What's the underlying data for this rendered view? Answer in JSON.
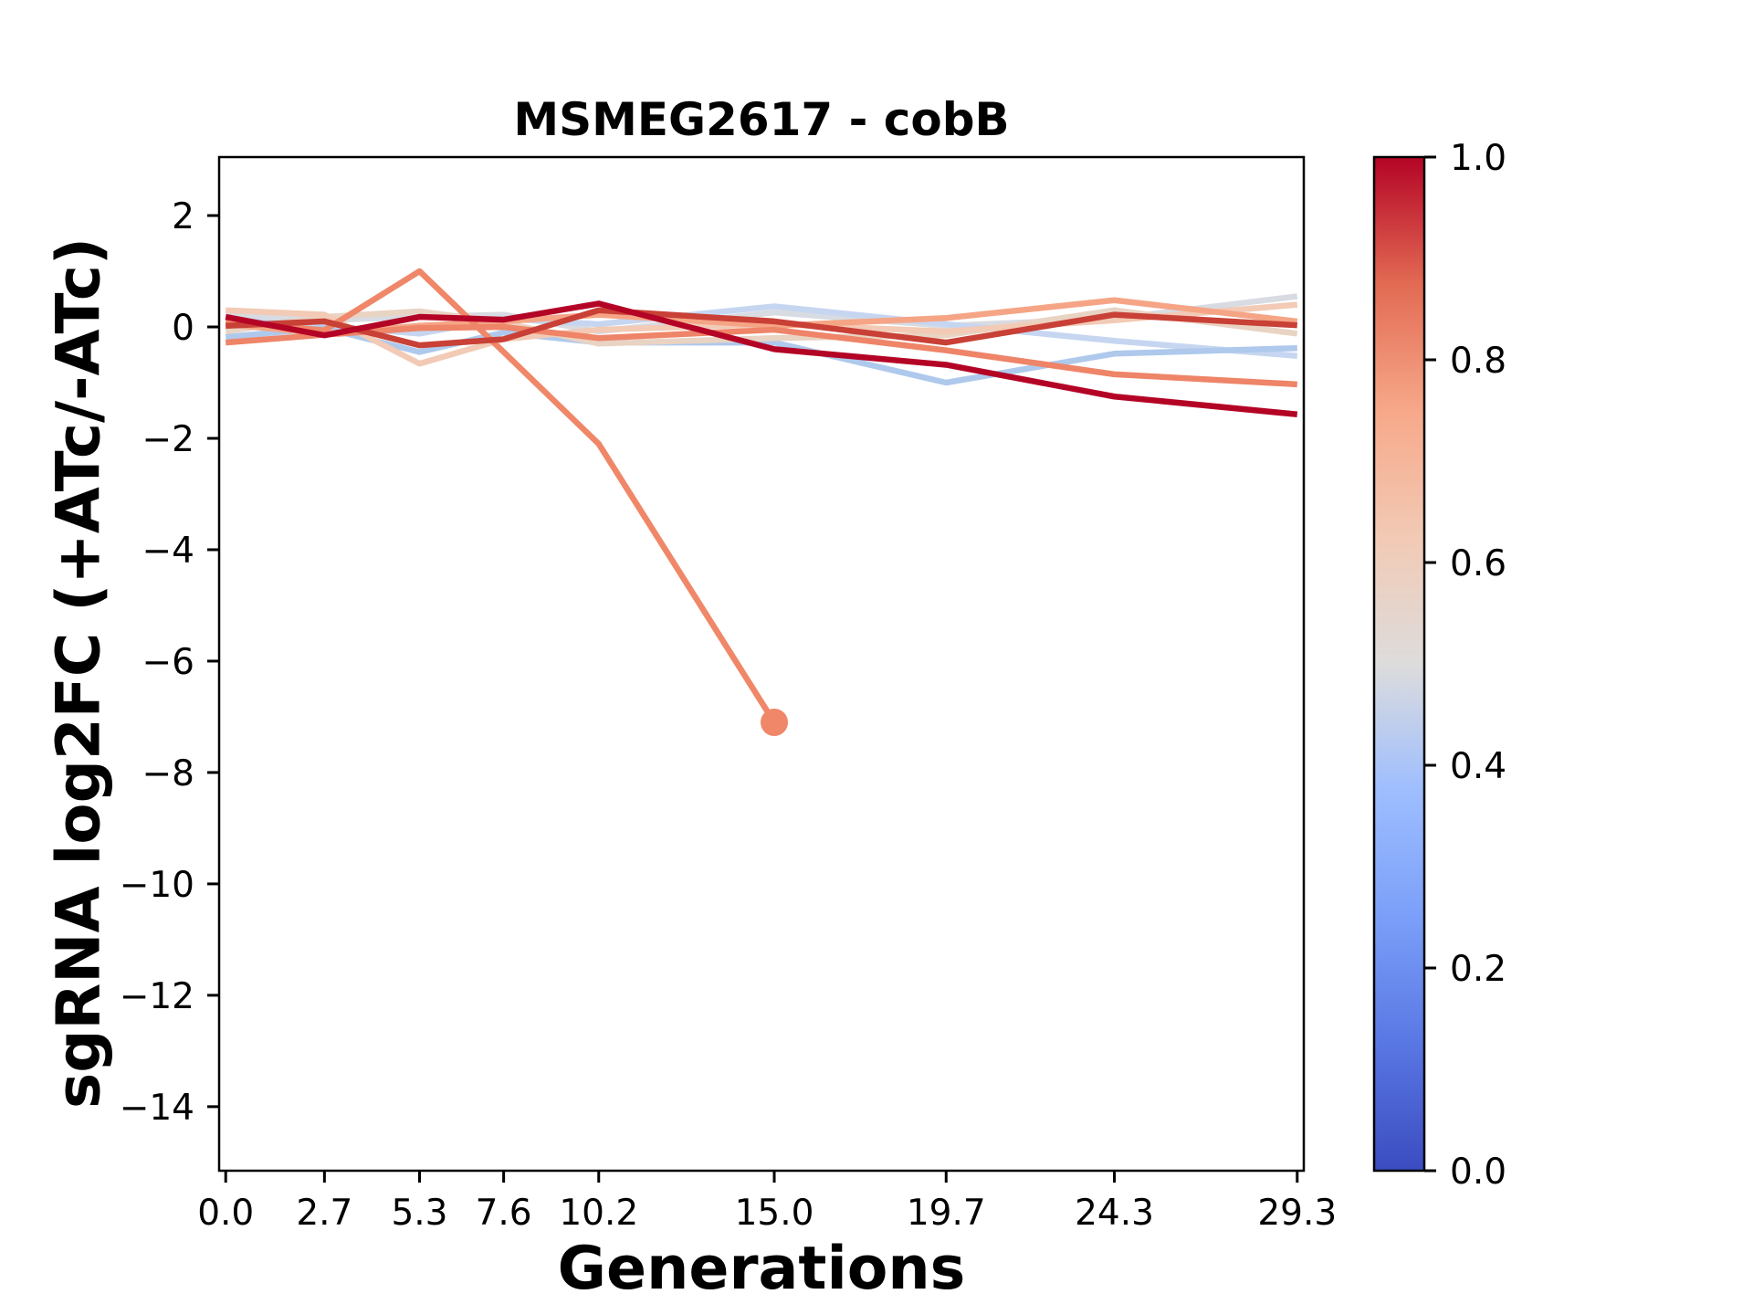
{
  "chart_data": {
    "type": "line",
    "title": "MSMEG2617 - cobB",
    "xlabel": "Generations",
    "ylabel": "sgRNA log2FC (+ATc/-ATc)",
    "xlim": [
      -0.18,
      29.48
    ],
    "ylim": [
      -15.15,
      3.05
    ],
    "grid": false,
    "background": "#ffffff",
    "axis_color": "#000000",
    "x": [
      0.0,
      2.7,
      5.3,
      7.6,
      10.2,
      15.0,
      19.7,
      24.3,
      29.3
    ],
    "x_ticks": [
      {
        "v": 0.0,
        "label": "0.0"
      },
      {
        "v": 2.7,
        "label": "2.7"
      },
      {
        "v": 5.3,
        "label": "5.3"
      },
      {
        "v": 7.6,
        "label": "7.6"
      },
      {
        "v": 10.2,
        "label": "10.2"
      },
      {
        "v": 15.0,
        "label": "15.0"
      },
      {
        "v": 19.7,
        "label": "19.7"
      },
      {
        "v": 24.3,
        "label": "24.3"
      },
      {
        "v": 29.3,
        "label": "29.3"
      }
    ],
    "y_ticks": [
      {
        "v": 2,
        "label": "2"
      },
      {
        "v": 0,
        "label": "0"
      },
      {
        "v": -2,
        "label": "−2"
      },
      {
        "v": -4,
        "label": "−4"
      },
      {
        "v": -6,
        "label": "−6"
      },
      {
        "v": -8,
        "label": "−8"
      },
      {
        "v": -10,
        "label": "−10"
      },
      {
        "v": -12,
        "label": "−12"
      },
      {
        "v": -14,
        "label": "−14"
      }
    ],
    "series": [
      {
        "cmap_value": 0.5,
        "color": "#d8dbe2",
        "values": [
          0.22,
          0.12,
          0.18,
          0.22,
          -0.08,
          0.26,
          0.02,
          0.15,
          0.55
        ]
      },
      {
        "cmap_value": 0.45,
        "color": "#c6d6f1",
        "values": [
          0.12,
          0.02,
          -0.12,
          0.15,
          0.05,
          0.37,
          0.05,
          -0.25,
          -0.52
        ]
      },
      {
        "cmap_value": 0.4,
        "color": "#aec9ec",
        "values": [
          -0.18,
          -0.02,
          -0.45,
          -0.1,
          -0.28,
          -0.28,
          -1.0,
          -0.48,
          -0.38
        ]
      },
      {
        "cmap_value": 0.57,
        "color": "#e9d3c3",
        "values": [
          -0.08,
          0.18,
          0.28,
          0.08,
          -0.3,
          -0.2,
          -0.15,
          0.3,
          -0.12
        ]
      },
      {
        "cmap_value": 0.62,
        "color": "#f2cab5",
        "values": [
          0.3,
          0.22,
          -0.66,
          -0.22,
          -0.05,
          0.05,
          -0.08,
          0.12,
          0.4
        ]
      },
      {
        "cmap_value": 0.72,
        "color": "#f5a585",
        "values": [
          0.05,
          -0.12,
          0.02,
          0.1,
          0.22,
          0.02,
          0.16,
          0.48,
          0.1
        ]
      },
      {
        "cmap_value": 0.78,
        "color": "#ef8768",
        "values": [
          0.1,
          -0.06,
          1.0,
          -0.45,
          -2.1,
          -7.1,
          null,
          null,
          null
        ],
        "end_marker": true
      },
      {
        "cmap_value": 0.8,
        "color": "#ee8468",
        "values": [
          -0.28,
          -0.14,
          -0.02,
          0.0,
          -0.2,
          -0.05,
          -0.42,
          -0.85,
          -1.03
        ]
      },
      {
        "cmap_value": 0.9,
        "color": "#c94036",
        "values": [
          0.02,
          0.1,
          -0.33,
          -0.22,
          0.3,
          0.1,
          -0.28,
          0.22,
          0.03
        ]
      },
      {
        "cmap_value": 1.0,
        "color": "#b40426",
        "values": [
          0.18,
          -0.15,
          0.18,
          0.13,
          0.42,
          -0.4,
          -0.68,
          -1.25,
          -1.57
        ]
      }
    ],
    "colorbar": {
      "colormap": "coolwarm",
      "ticks": [
        {
          "v": 1.0,
          "label": "1.0"
        },
        {
          "v": 0.8,
          "label": "0.8"
        },
        {
          "v": 0.6,
          "label": "0.6"
        },
        {
          "v": 0.4,
          "label": "0.4"
        },
        {
          "v": 0.2,
          "label": "0.2"
        },
        {
          "v": 0.0,
          "label": "0.0"
        }
      ],
      "stops": [
        {
          "v": 0.0,
          "c": "#3b4cc0"
        },
        {
          "v": 0.125,
          "c": "#5977e3"
        },
        {
          "v": 0.25,
          "c": "#7b9ff9"
        },
        {
          "v": 0.375,
          "c": "#9ebeff"
        },
        {
          "v": 0.5,
          "c": "#dddcdc"
        },
        {
          "v": 0.625,
          "c": "#f2cab5"
        },
        {
          "v": 0.75,
          "c": "#f7a889"
        },
        {
          "v": 0.875,
          "c": "#e26a53"
        },
        {
          "v": 1.0,
          "c": "#b40426"
        }
      ]
    }
  }
}
